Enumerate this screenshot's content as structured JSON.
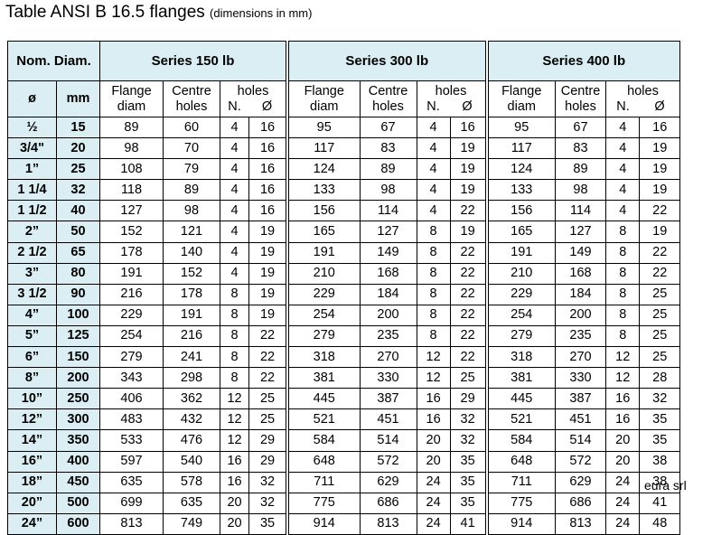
{
  "title": {
    "main": "Table ANSI B 16.5 flanges",
    "sub": "(dimensions in mm)"
  },
  "header": {
    "nominal": "Nom. Diam.",
    "series": [
      "Series 150 lb",
      "Series 300 lb",
      "Series 400 lb"
    ],
    "inch": "ø",
    "mm": "mm",
    "flange_diam": [
      "Flange",
      "diam"
    ],
    "centre_holes": [
      "Centre",
      "holes"
    ],
    "holes": "holes",
    "holes_n": "N.",
    "holes_d": "Ø"
  },
  "table": {
    "rows": [
      {
        "inch": "½",
        "mm": "15",
        "s150": [
          "89",
          "60",
          "4",
          "16"
        ],
        "s300": [
          "95",
          "67",
          "4",
          "16"
        ],
        "s400": [
          "95",
          "67",
          "4",
          "16"
        ]
      },
      {
        "inch": "3/4\"",
        "mm": "20",
        "s150": [
          "98",
          "70",
          "4",
          "16"
        ],
        "s300": [
          "117",
          "83",
          "4",
          "19"
        ],
        "s400": [
          "117",
          "83",
          "4",
          "19"
        ]
      },
      {
        "inch": "1”",
        "mm": "25",
        "s150": [
          "108",
          "79",
          "4",
          "16"
        ],
        "s300": [
          "124",
          "89",
          "4",
          "19"
        ],
        "s400": [
          "124",
          "89",
          "4",
          "19"
        ]
      },
      {
        "inch": "1 1/4",
        "mm": "32",
        "s150": [
          "118",
          "89",
          "4",
          "16"
        ],
        "s300": [
          "133",
          "98",
          "4",
          "19"
        ],
        "s400": [
          "133",
          "98",
          "4",
          "19"
        ]
      },
      {
        "inch": "1 1/2",
        "mm": "40",
        "s150": [
          "127",
          "98",
          "4",
          "16"
        ],
        "s300": [
          "156",
          "114",
          "4",
          "22"
        ],
        "s400": [
          "156",
          "114",
          "4",
          "22"
        ]
      },
      {
        "inch": "2”",
        "mm": "50",
        "s150": [
          "152",
          "121",
          "4",
          "19"
        ],
        "s300": [
          "165",
          "127",
          "8",
          "19"
        ],
        "s400": [
          "165",
          "127",
          "8",
          "19"
        ]
      },
      {
        "inch": "2 1/2",
        "mm": "65",
        "s150": [
          "178",
          "140",
          "4",
          "19"
        ],
        "s300": [
          "191",
          "149",
          "8",
          "22"
        ],
        "s400": [
          "191",
          "149",
          "8",
          "22"
        ]
      },
      {
        "inch": "3”",
        "mm": "80",
        "s150": [
          "191",
          "152",
          "4",
          "19"
        ],
        "s300": [
          "210",
          "168",
          "8",
          "22"
        ],
        "s400": [
          "210",
          "168",
          "8",
          "22"
        ]
      },
      {
        "inch": "3 1/2",
        "mm": "90",
        "s150": [
          "216",
          "178",
          "8",
          "19"
        ],
        "s300": [
          "229",
          "184",
          "8",
          "22"
        ],
        "s400": [
          "229",
          "184",
          "8",
          "25"
        ]
      },
      {
        "inch": "4”",
        "mm": "100",
        "s150": [
          "229",
          "191",
          "8",
          "19"
        ],
        "s300": [
          "254",
          "200",
          "8",
          "22"
        ],
        "s400": [
          "254",
          "200",
          "8",
          "25"
        ]
      },
      {
        "inch": "5”",
        "mm": "125",
        "s150": [
          "254",
          "216",
          "8",
          "22"
        ],
        "s300": [
          "279",
          "235",
          "8",
          "22"
        ],
        "s400": [
          "279",
          "235",
          "8",
          "25"
        ]
      },
      {
        "inch": "6”",
        "mm": "150",
        "s150": [
          "279",
          "241",
          "8",
          "22"
        ],
        "s300": [
          "318",
          "270",
          "12",
          "22"
        ],
        "s400": [
          "318",
          "270",
          "12",
          "25"
        ]
      },
      {
        "inch": "8”",
        "mm": "200",
        "s150": [
          "343",
          "298",
          "8",
          "22"
        ],
        "s300": [
          "381",
          "330",
          "12",
          "25"
        ],
        "s400": [
          "381",
          "330",
          "12",
          "28"
        ]
      },
      {
        "inch": "10”",
        "mm": "250",
        "s150": [
          "406",
          "362",
          "12",
          "25"
        ],
        "s300": [
          "445",
          "387",
          "16",
          "29"
        ],
        "s400": [
          "445",
          "387",
          "16",
          "32"
        ]
      },
      {
        "inch": "12”",
        "mm": "300",
        "s150": [
          "483",
          "432",
          "12",
          "25"
        ],
        "s300": [
          "521",
          "451",
          "16",
          "32"
        ],
        "s400": [
          "521",
          "451",
          "16",
          "35"
        ]
      },
      {
        "inch": "14”",
        "mm": "350",
        "s150": [
          "533",
          "476",
          "12",
          "29"
        ],
        "s300": [
          "584",
          "514",
          "20",
          "32"
        ],
        "s400": [
          "584",
          "514",
          "20",
          "35"
        ]
      },
      {
        "inch": "16”",
        "mm": "400",
        "s150": [
          "597",
          "540",
          "16",
          "29"
        ],
        "s300": [
          "648",
          "572",
          "20",
          "35"
        ],
        "s400": [
          "648",
          "572",
          "20",
          "38"
        ]
      },
      {
        "inch": "18”",
        "mm": "450",
        "s150": [
          "635",
          "578",
          "16",
          "32"
        ],
        "s300": [
          "711",
          "629",
          "24",
          "35"
        ],
        "s400": [
          "711",
          "629",
          "24",
          "38"
        ]
      },
      {
        "inch": "20”",
        "mm": "500",
        "s150": [
          "699",
          "635",
          "20",
          "32"
        ],
        "s300": [
          "775",
          "686",
          "24",
          "35"
        ],
        "s400": [
          "775",
          "686",
          "24",
          "41"
        ]
      },
      {
        "inch": "24”",
        "mm": "600",
        "s150": [
          "813",
          "749",
          "20",
          "35"
        ],
        "s300": [
          "914",
          "813",
          "24",
          "41"
        ],
        "s400": [
          "914",
          "813",
          "24",
          "48"
        ]
      }
    ]
  },
  "footer": "eura srl"
}
